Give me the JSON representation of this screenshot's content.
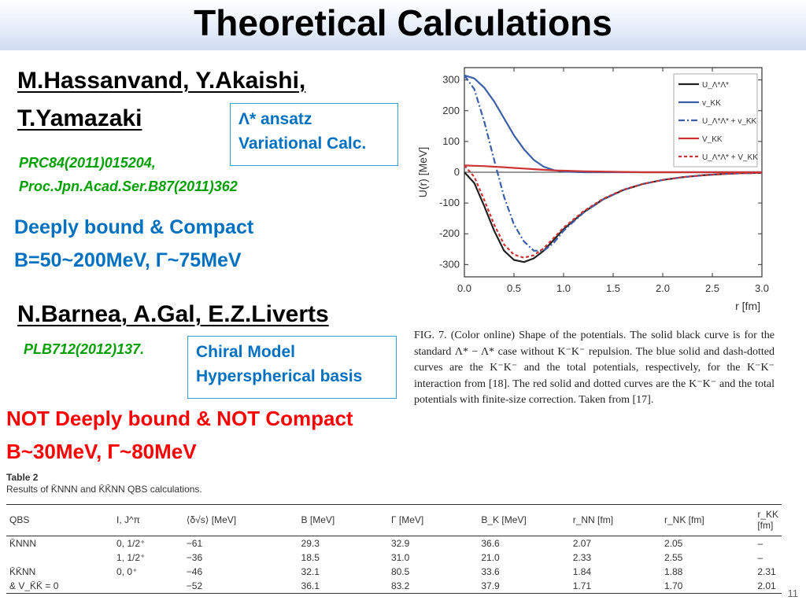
{
  "title": "Theoretical Calculations",
  "paper1": {
    "authors_line1": "M.Hassanvand, Y.Akaishi,",
    "authors_line2": "T.Yamazaki",
    "ref_line1": "PRC84(2011)015204,",
    "ref_line2": "Proc.Jpn.Acad.Ser.B87(2011)362",
    "box_line1": "Λ* ansatz",
    "box_line2": "Variational Calc.",
    "result_line1": "Deeply bound & Compact",
    "result_line2": "B=50~200MeV, Γ~75MeV"
  },
  "paper2": {
    "authors": "N.Barnea, A.Gal, E.Z.Liverts",
    "ref": "PLB712(2012)137.",
    "box_line1": "Chiral Model",
    "box_line2": "Hyperspherical basis",
    "result_line1": "NOT Deeply bound & NOT Compact",
    "result_line2": "B~30MeV, Γ~80MeV"
  },
  "caption": "FIG. 7. (Color online) Shape of the potentials. The solid black curve is for the standard Λ* − Λ* case without K⁻K⁻ repulsion. The blue solid and dash-dotted curves are the K⁻K⁻ and the total potentials, respectively, for the K⁻K⁻ interaction from [18]. The red solid and dotted curves are the K⁻K⁻ and the total potentials with finite-size correction. Taken from [17].",
  "table": {
    "title": "Table 2",
    "subtitle": "Results of K̄NNN and K̄K̄NN QBS calculations.",
    "headers": [
      "QBS",
      "I, J^π",
      "⟨δ√s⟩ [MeV]",
      "B [MeV]",
      "Γ [MeV]",
      "B_K [MeV]",
      "r_NN [fm]",
      "r_NK [fm]",
      "r_KK [fm]"
    ],
    "rows": [
      [
        "K̄NNN",
        "0, 1/2⁺",
        "−61",
        "29.3",
        "32.9",
        "36.6",
        "2.07",
        "2.05",
        "–"
      ],
      [
        "",
        "1, 1/2⁺",
        "−36",
        "18.5",
        "31.0",
        "21.0",
        "2.33",
        "2.55",
        "–"
      ],
      [
        "K̄K̄NN",
        "0, 0⁺",
        "−46",
        "32.1",
        "80.5",
        "33.6",
        "1.84",
        "1.88",
        "2.31"
      ],
      [
        "& V_K̄K̄ = 0",
        "",
        "−52",
        "36.1",
        "83.2",
        "37.9",
        "1.71",
        "1.70",
        "2.01"
      ]
    ]
  },
  "page_number": "11",
  "chart_data": {
    "type": "line",
    "xlabel": "r [fm]",
    "ylabel": "U(r) [MeV]",
    "xlim": [
      0,
      3
    ],
    "ylim": [
      -340,
      340
    ],
    "xticks": [
      "0.0",
      "0.5",
      "1.0",
      "1.5",
      "2.0",
      "2.5",
      "3.0"
    ],
    "yticks": [
      "300",
      "200",
      "100",
      "0",
      "-100",
      "-200",
      "-300"
    ],
    "legend_position": "top-right",
    "x": [
      0,
      0.1,
      0.2,
      0.3,
      0.4,
      0.5,
      0.6,
      0.7,
      0.8,
      0.9,
      1.0,
      1.2,
      1.4,
      1.6,
      1.8,
      2.0,
      2.2,
      2.4,
      2.6,
      2.8,
      3.0
    ],
    "series": [
      {
        "name": "U_Λ*Λ*",
        "color": "#222222",
        "dash": "solid",
        "values": [
          0,
          -35,
          -110,
          -190,
          -255,
          -285,
          -292,
          -280,
          -255,
          -220,
          -185,
          -130,
          -88,
          -58,
          -38,
          -25,
          -16,
          -10,
          -6,
          -3,
          -2
        ]
      },
      {
        "name": "v_KK",
        "color": "#3a5ea8",
        "dash": "solid",
        "values": [
          315,
          305,
          275,
          230,
          175,
          120,
          75,
          40,
          18,
          7,
          2,
          0,
          0,
          0,
          0,
          0,
          0,
          0,
          0,
          0,
          0
        ]
      },
      {
        "name": "U_Λ*Λ* + v_KK",
        "color": "#3a5ea8",
        "dash": "dashdot",
        "values": [
          315,
          270,
          165,
          40,
          -80,
          -170,
          -225,
          -255,
          -255,
          -230,
          -190,
          -132,
          -88,
          -58,
          -38,
          -25,
          -16,
          -10,
          -6,
          -3,
          -2
        ]
      },
      {
        "name": "V_KK",
        "color": "#cc3333",
        "dash": "solid",
        "values": [
          22,
          21,
          20,
          18,
          16,
          14,
          12,
          10,
          8,
          6,
          5,
          3,
          2,
          1,
          0,
          0,
          0,
          0,
          0,
          0,
          0
        ]
      },
      {
        "name": "U_Λ*Λ* + V_KK",
        "color": "#cc3333",
        "dash": "dot",
        "values": [
          22,
          -15,
          -90,
          -170,
          -235,
          -268,
          -278,
          -270,
          -247,
          -214,
          -180,
          -127,
          -86,
          -57,
          -38,
          -25,
          -16,
          -10,
          -6,
          -3,
          -2
        ]
      }
    ]
  }
}
